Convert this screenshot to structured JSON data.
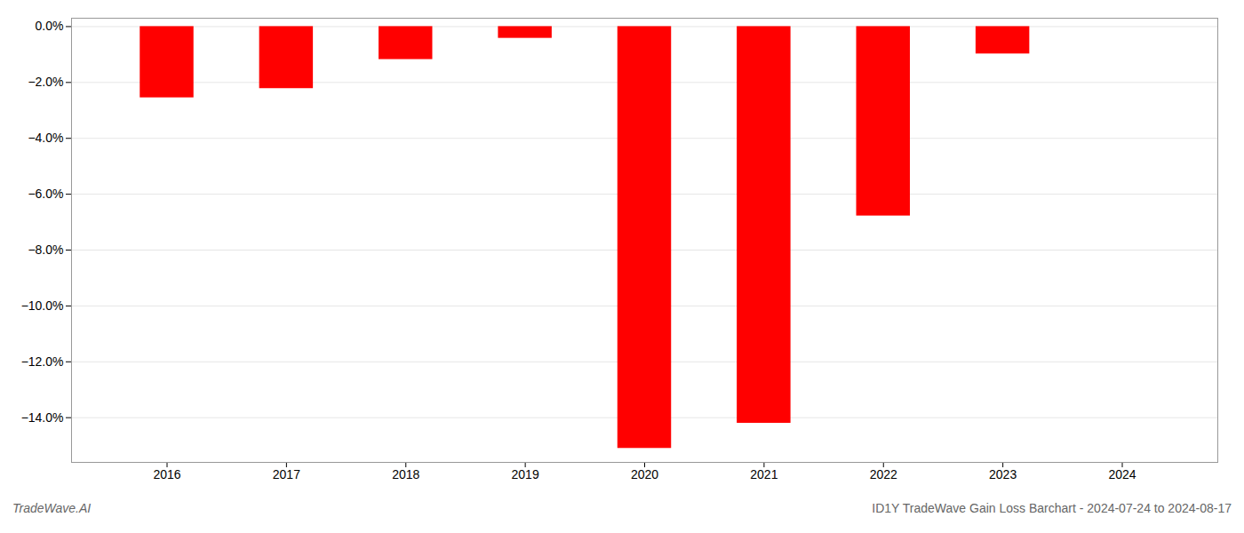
{
  "chart_data": {
    "type": "bar",
    "x": [
      2016,
      2017,
      2018,
      2019,
      2020,
      2021,
      2022,
      2023,
      2024
    ],
    "values": [
      -2.55,
      -2.22,
      -1.18,
      -0.42,
      -15.1,
      -14.2,
      -6.78,
      -0.98,
      0.0
    ],
    "color": "#ff0000",
    "xlim": [
      2015.2,
      2024.8
    ],
    "xticks": [
      2016,
      2017,
      2018,
      2019,
      2020,
      2021,
      2022,
      2023,
      2024
    ],
    "ylim": [
      -15.6,
      0.3
    ],
    "yticks": [
      {
        "value": 0.0,
        "label": "0.0%"
      },
      {
        "value": -2.0,
        "label": "−2.0%"
      },
      {
        "value": -4.0,
        "label": "−4.0%"
      },
      {
        "value": -6.0,
        "label": "−6.0%"
      },
      {
        "value": -8.0,
        "label": "−8.0%"
      },
      {
        "value": -10.0,
        "label": "−10.0%"
      },
      {
        "value": -12.0,
        "label": "−12.0%"
      },
      {
        "value": -14.0,
        "label": "−14.0%"
      }
    ],
    "grid": true,
    "annotations": [
      "TradeWave.AI",
      "ID1Y TradeWave Gain Loss Barchart - 2024-07-24 to 2024-08-17"
    ]
  }
}
